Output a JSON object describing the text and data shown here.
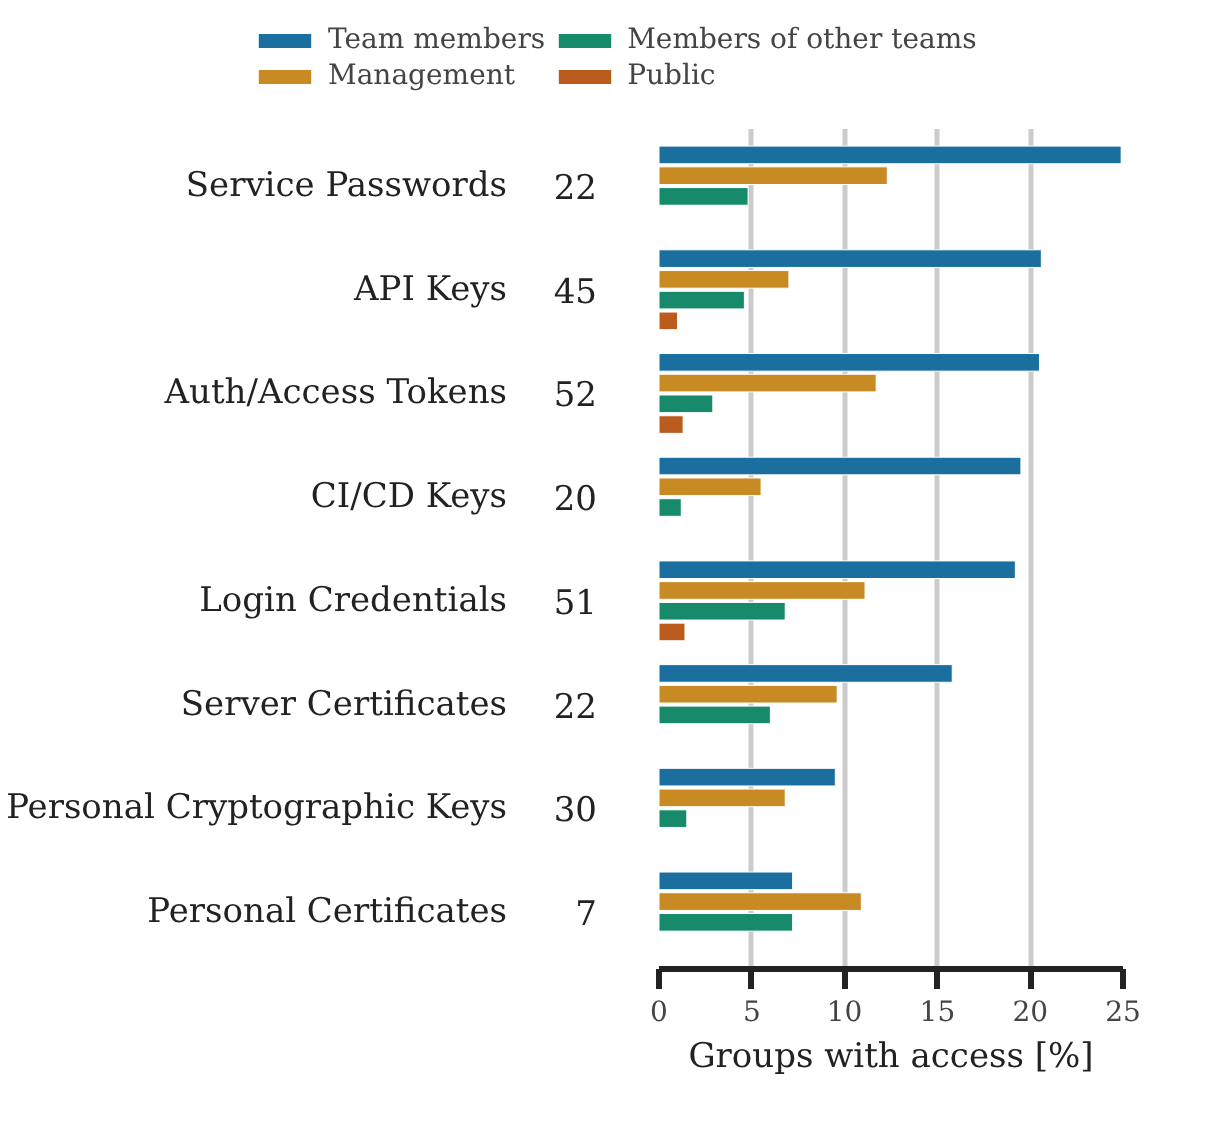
{
  "chart_data": {
    "type": "bar",
    "orientation": "horizontal",
    "xlabel": "Groups with access [%]",
    "categories": [
      "Service Passwords",
      "API Keys",
      "Auth/Access Tokens",
      "CI/CD Keys",
      "Login Credentials",
      "Server Certificates",
      "Personal Cryptographic Keys",
      "Personal Certificates"
    ],
    "annotations": [
      "22",
      "45",
      "52",
      "20",
      "51",
      "22",
      "30",
      "7"
    ],
    "series": [
      {
        "name": "Team members",
        "color": "#1a6f9f",
        "values": [
          24.9,
          20.6,
          20.5,
          19.5,
          19.2,
          15.8,
          9.5,
          7.2
        ]
      },
      {
        "name": "Management",
        "color": "#c88a22",
        "values": [
          12.3,
          7.0,
          11.7,
          5.5,
          11.1,
          9.6,
          6.8,
          10.9
        ]
      },
      {
        "name": "Members of other teams",
        "color": "#168a6a",
        "values": [
          4.8,
          4.6,
          2.9,
          1.2,
          6.8,
          6.0,
          1.5,
          7.2
        ]
      },
      {
        "name": "Public",
        "color": "#bb5c1e",
        "values": [
          null,
          1.0,
          1.3,
          null,
          1.4,
          null,
          null,
          null
        ]
      }
    ],
    "xlim": [
      0,
      25
    ],
    "xticks": [
      0,
      5,
      10,
      15,
      20,
      25
    ],
    "grid": "x",
    "legend": "top"
  }
}
